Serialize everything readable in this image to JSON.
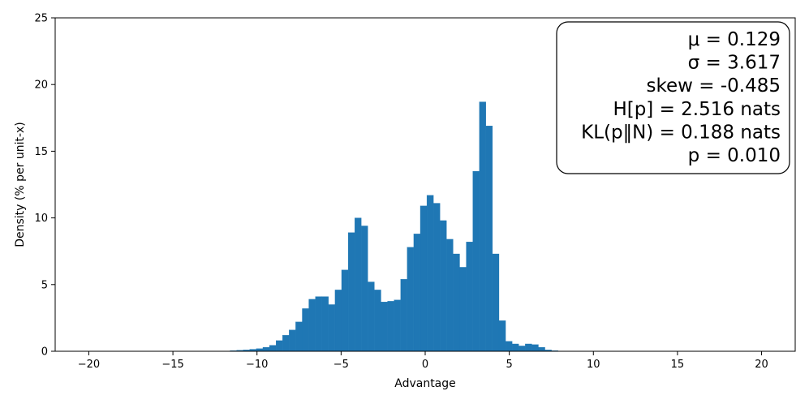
{
  "chart_data": {
    "type": "bar",
    "title": "",
    "xlabel": "Advantage",
    "ylabel": "Density (% per unit-x)",
    "xlim": [
      -22,
      22
    ],
    "ylim": [
      0,
      25
    ],
    "xticks": [
      -20,
      -15,
      -10,
      -5,
      0,
      5,
      10,
      15,
      20
    ],
    "xtick_labels": [
      "−20",
      "−15",
      "−10",
      "−5",
      "0",
      "5",
      "10",
      "15",
      "20"
    ],
    "yticks": [
      0,
      5,
      10,
      15,
      20,
      25
    ],
    "ytick_labels": [
      "0",
      "5",
      "10",
      "15",
      "20",
      "25"
    ],
    "grid": false,
    "bin_start": -11.6,
    "bin_width": 0.39,
    "bar_color": "#1f77b4",
    "values": [
      0.05,
      0.08,
      0.1,
      0.15,
      0.2,
      0.3,
      0.45,
      0.8,
      1.2,
      1.6,
      2.2,
      3.2,
      3.9,
      4.1,
      4.1,
      3.5,
      4.6,
      6.1,
      8.9,
      10.0,
      9.4,
      5.2,
      4.6,
      3.7,
      3.75,
      3.85,
      5.4,
      7.8,
      8.8,
      10.9,
      11.7,
      11.1,
      9.8,
      8.4,
      7.3,
      6.3,
      8.2,
      13.5,
      18.7,
      16.9,
      7.3,
      2.3,
      0.75,
      0.55,
      0.4,
      0.55,
      0.5,
      0.3,
      0.1,
      0.05
    ],
    "stats_box": {
      "position": "top-right",
      "lines": [
        "μ = 0.129",
        "σ = 3.617",
        "skew = -0.485",
        "H[p] = 2.516 nats",
        "KL(p‖N) = 0.188 nats",
        "p = 0.010"
      ]
    }
  }
}
